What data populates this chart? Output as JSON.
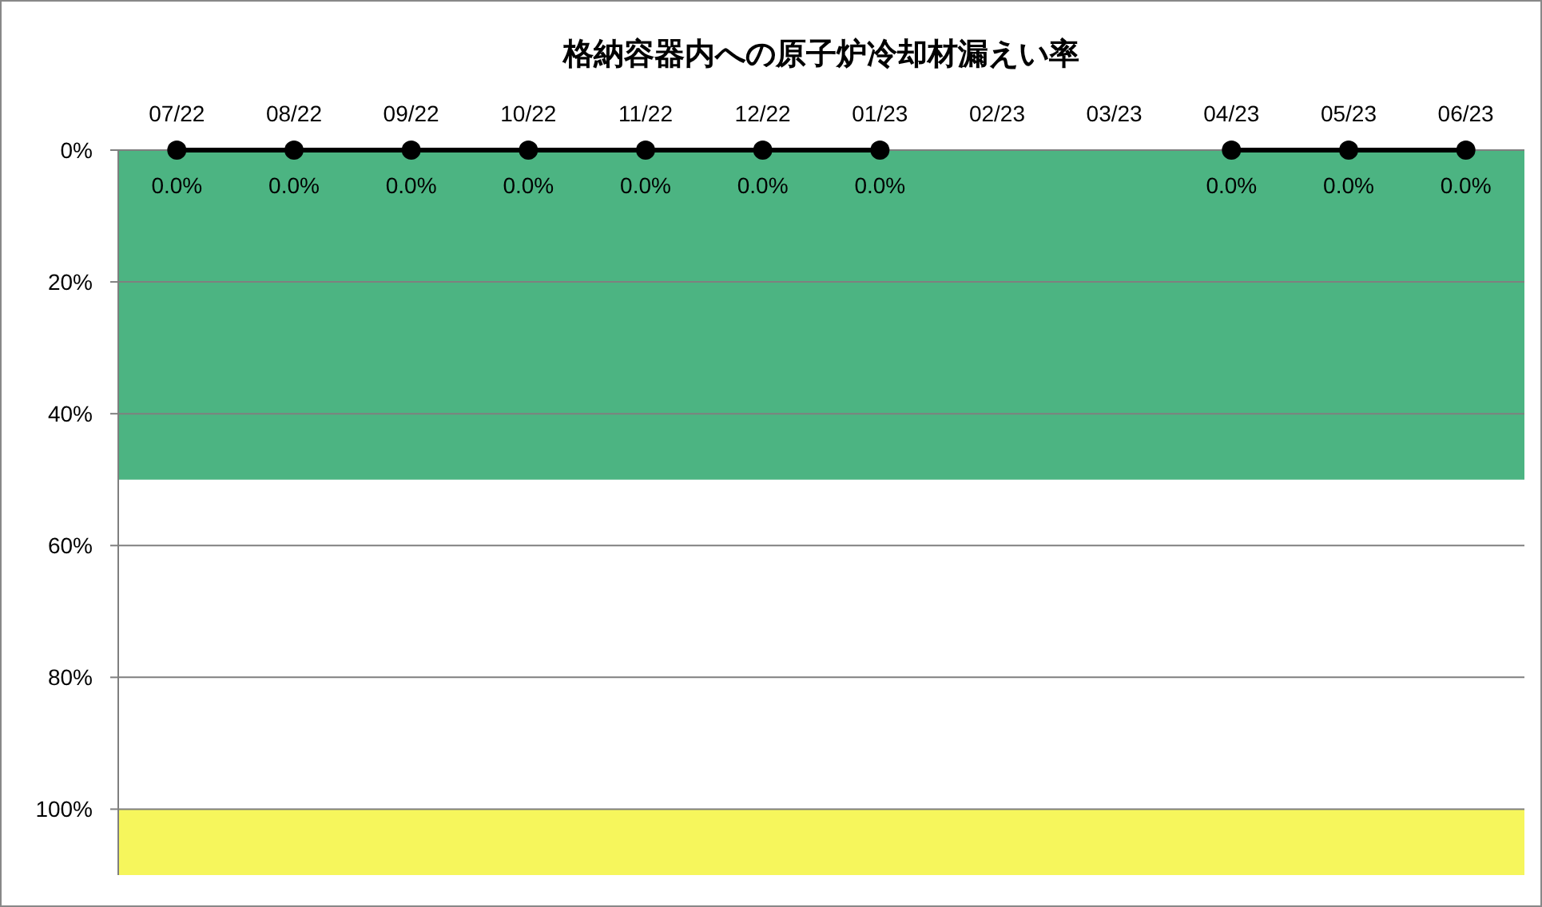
{
  "chart_data": {
    "type": "line",
    "title": "格納容器内への原子炉冷却材漏えい率",
    "categories": [
      "07/22",
      "08/22",
      "09/22",
      "10/22",
      "11/22",
      "12/22",
      "01/23",
      "02/23",
      "03/23",
      "04/23",
      "05/23",
      "06/23"
    ],
    "series": [
      {
        "color": "#000000",
        "values": [
          0,
          0,
          0,
          0,
          0,
          0,
          0,
          null,
          null,
          0,
          0,
          0
        ],
        "value_labels": [
          "0.0%",
          "0.0%",
          "0.0%",
          "0.0%",
          "0.0%",
          "0.0%",
          "0.0%",
          null,
          null,
          "0.0%",
          "0.0%",
          "0.0%"
        ]
      }
    ],
    "ylim": [
      110,
      0
    ],
    "yticks": [
      {
        "value": 0,
        "label": "0%"
      },
      {
        "value": 20,
        "label": "20%"
      },
      {
        "value": 40,
        "label": "40%"
      },
      {
        "value": 60,
        "label": "60%"
      },
      {
        "value": 80,
        "label": "80%"
      },
      {
        "value": 100,
        "label": "100%"
      }
    ],
    "grid": "y",
    "marker": "circle",
    "line_style": "solid",
    "bands": [
      {
        "axis": "y",
        "from": 0,
        "to": 50,
        "color": "#4cb482"
      },
      {
        "axis": "y",
        "from": 100,
        "to": 110,
        "color": "#f6f65c"
      }
    ]
  }
}
